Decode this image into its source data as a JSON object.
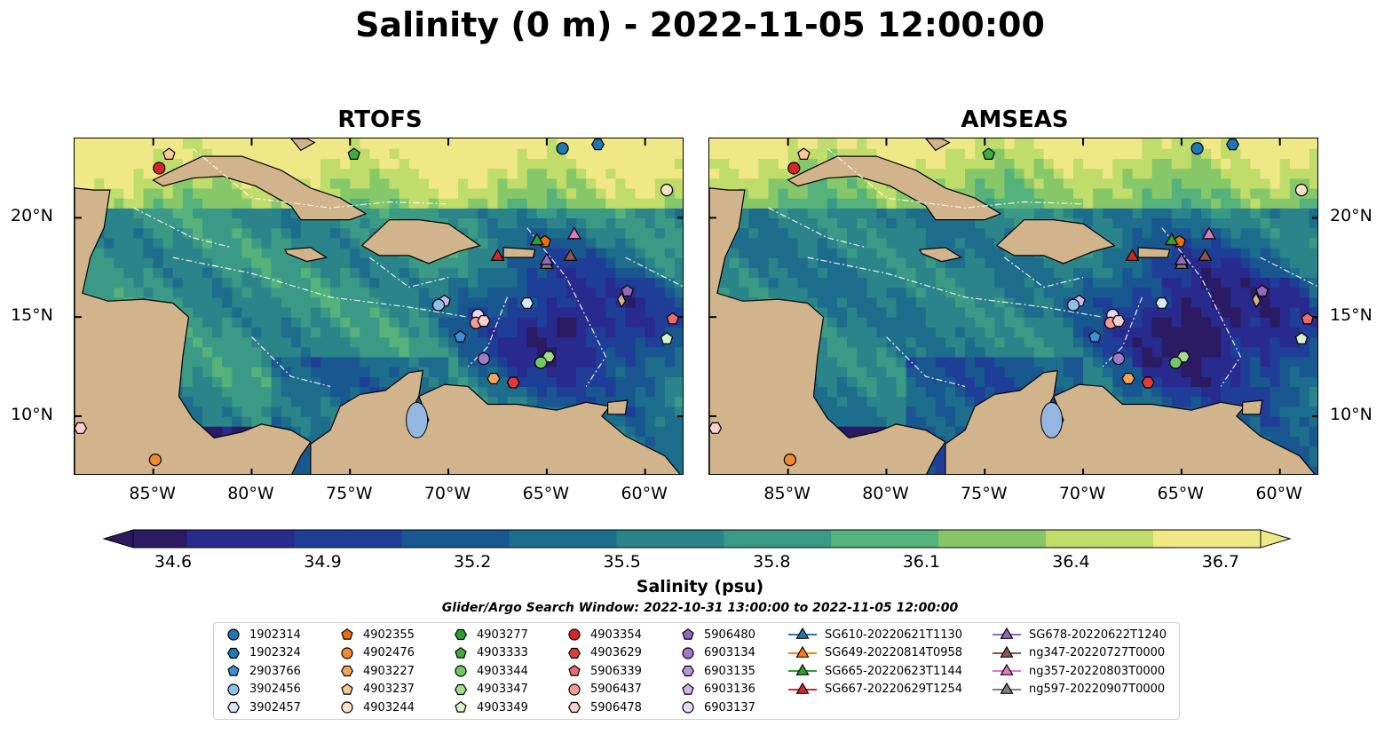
{
  "title": "Salinity (0 m) - 2022-11-05 12:00:00",
  "panels": [
    {
      "title": "RTOFS",
      "model": "rtofs"
    },
    {
      "title": "AMSEAS",
      "model": "amseas"
    }
  ],
  "axes": {
    "lon_ticks": [
      "85°W",
      "80°W",
      "75°W",
      "70°W",
      "65°W",
      "60°W"
    ],
    "lat_ticks": [
      "20°N",
      "15°N",
      "10°N"
    ],
    "lon_range": [
      -89,
      -58
    ],
    "lat_range": [
      7,
      24
    ]
  },
  "colorbar": {
    "label": "Salinity (psu)",
    "ticks": [
      "34.6",
      "34.9",
      "35.2",
      "35.5",
      "35.8",
      "36.1",
      "36.4",
      "36.7"
    ],
    "min": 34.6,
    "max": 36.7,
    "colormap": [
      "#2a1b63",
      "#282a8d",
      "#1f3e97",
      "#195790",
      "#1d6d8c",
      "#2a8489",
      "#3a9a85",
      "#55b27b",
      "#86c869",
      "#c0dc6a",
      "#f0e886"
    ],
    "extend": "both"
  },
  "search_window": "Glider/Argo Search Window: 2022-10-31 13:00:00 to 2022-11-05 12:00:00",
  "legend": [
    {
      "label": "1902314",
      "marker": "circle",
      "color": "#1f77b4"
    },
    {
      "label": "1902324",
      "marker": "hexagon",
      "color": "#1f77b4"
    },
    {
      "label": "2903766",
      "marker": "pentagon",
      "color": "#3a8fd8"
    },
    {
      "label": "3902456",
      "marker": "circle",
      "color": "#8ec1e8"
    },
    {
      "label": "3902457",
      "marker": "hexagon",
      "color": "#d5e9f8"
    },
    {
      "label": "4902355",
      "marker": "pentagon",
      "color": "#e86f0c"
    },
    {
      "label": "4902476",
      "marker": "circle",
      "color": "#f28b30"
    },
    {
      "label": "4903227",
      "marker": "hexagon",
      "color": "#f6a65a"
    },
    {
      "label": "4903237",
      "marker": "pentagon",
      "color": "#f9c99a"
    },
    {
      "label": "4903244",
      "marker": "circle",
      "color": "#fde3c6"
    },
    {
      "label": "4903277",
      "marker": "hexagon",
      "color": "#2ca02c"
    },
    {
      "label": "4903333",
      "marker": "pentagon",
      "color": "#3fae3f"
    },
    {
      "label": "4903344",
      "marker": "circle",
      "color": "#74c66a"
    },
    {
      "label": "4903347",
      "marker": "hexagon",
      "color": "#9fdc8e"
    },
    {
      "label": "4903349",
      "marker": "pentagon",
      "color": "#d8f5c8"
    },
    {
      "label": "4903354",
      "marker": "circle",
      "color": "#d62728"
    },
    {
      "label": "4903629",
      "marker": "hexagon",
      "color": "#e03a3a"
    },
    {
      "label": "5906339",
      "marker": "pentagon",
      "color": "#ef6b6b"
    },
    {
      "label": "5906437",
      "marker": "circle",
      "color": "#f49a97"
    },
    {
      "label": "5906478",
      "marker": "hexagon",
      "color": "#fbd0cc"
    },
    {
      "label": "5906480",
      "marker": "pentagon",
      "color": "#9467bd"
    },
    {
      "label": "6903134",
      "marker": "circle",
      "color": "#a07ac8"
    },
    {
      "label": "6903135",
      "marker": "hexagon",
      "color": "#b596da"
    },
    {
      "label": "6903136",
      "marker": "pentagon",
      "color": "#cdb6ec"
    },
    {
      "label": "6903137",
      "marker": "circle",
      "color": "#e8d8fa"
    },
    {
      "label": "SG610-20220621T1130",
      "marker": "triangle",
      "color": "#1f77b4"
    },
    {
      "label": "SG649-20220814T0958",
      "marker": "triangle",
      "color": "#ff7f0e"
    },
    {
      "label": "SG665-20220623T1144",
      "marker": "triangle",
      "color": "#2ca02c"
    },
    {
      "label": "SG667-20220629T1254",
      "marker": "triangle",
      "color": "#d62728"
    },
    {
      "label": "SG678-20220622T1240",
      "marker": "triangle",
      "color": "#9467bd"
    },
    {
      "label": "ng347-20220727T0000",
      "marker": "triangle",
      "color": "#8c564b"
    },
    {
      "label": "ng357-20220803T0000",
      "marker": "triangle",
      "color": "#e377c2"
    },
    {
      "label": "ng597-20220907T0000",
      "marker": "triangle",
      "color": "#7f7f7f"
    }
  ],
  "markers_on_map": [
    {
      "id": "1902314",
      "lon": -64.2,
      "lat": 23.5
    },
    {
      "id": "1902324",
      "lon": -62.4,
      "lat": 23.7
    },
    {
      "id": "4903237",
      "lon": -84.2,
      "lat": 23.2
    },
    {
      "id": "4903354",
      "lon": -84.7,
      "lat": 22.5
    },
    {
      "id": "4903333",
      "lon": -74.8,
      "lat": 23.2
    },
    {
      "id": "4903244",
      "lon": -58.9,
      "lat": 21.4
    },
    {
      "id": "4902355",
      "lon": -65.1,
      "lat": 18.8
    },
    {
      "id": "3902457",
      "lon": -66.0,
      "lat": 15.7
    },
    {
      "id": "6903136",
      "lon": -70.2,
      "lat": 15.8
    },
    {
      "id": "3902456",
      "lon": -70.5,
      "lat": 15.6
    },
    {
      "id": "6903137",
      "lon": -68.5,
      "lat": 15.1
    },
    {
      "id": "5906437",
      "lon": -68.6,
      "lat": 14.7
    },
    {
      "id": "5906478",
      "lon": -68.2,
      "lat": 14.8
    },
    {
      "id": "2903766",
      "lon": -69.4,
      "lat": 14.0
    },
    {
      "id": "6903134",
      "lon": -68.2,
      "lat": 12.9
    },
    {
      "id": "4903347",
      "lon": -64.9,
      "lat": 13.0
    },
    {
      "id": "4903344",
      "lon": -65.3,
      "lat": 12.7
    },
    {
      "id": "4903227",
      "lon": -67.7,
      "lat": 11.9
    },
    {
      "id": "4903629",
      "lon": -66.7,
      "lat": 11.7
    },
    {
      "id": "5906339",
      "lon": -58.6,
      "lat": 14.9
    },
    {
      "id": "4903349",
      "lon": -58.9,
      "lat": 13.9
    },
    {
      "id": "5906480",
      "lon": -60.9,
      "lat": 16.3
    },
    {
      "id": "4902476",
      "lon": -84.9,
      "lat": 7.8
    },
    {
      "id": "5906478",
      "lon": -88.7,
      "lat": 9.4
    },
    {
      "id": "SG665-20220623T1144",
      "lon": -65.5,
      "lat": 18.9
    },
    {
      "id": "ng357-20220803T0000",
      "lon": -63.6,
      "lat": 19.2
    },
    {
      "id": "SG667-20220629T1254",
      "lon": -67.5,
      "lat": 18.1
    },
    {
      "id": "ng597-20220907T0000",
      "lon": -65.0,
      "lat": 17.7
    },
    {
      "id": "SG678-20220622T1240",
      "lon": -65.0,
      "lat": 17.9
    },
    {
      "id": "ng347-20220727T0000",
      "lon": -63.8,
      "lat": 18.1
    }
  ]
}
